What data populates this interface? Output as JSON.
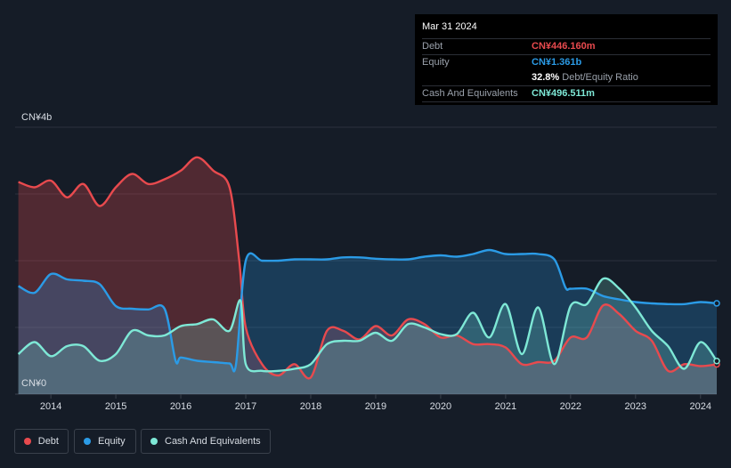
{
  "tooltip": {
    "date": "Mar 31 2024",
    "debt_label": "Debt",
    "debt_value": "CN¥446.160m",
    "equity_label": "Equity",
    "equity_value": "CN¥1.361b",
    "ratio_value": "32.8%",
    "ratio_label": "Debt/Equity Ratio",
    "cash_label": "Cash And Equivalents",
    "cash_value": "CN¥496.511m"
  },
  "legend": {
    "debt": "Debt",
    "equity": "Equity",
    "cash": "Cash And Equivalents"
  },
  "colors": {
    "debt": "#e84a4e",
    "equity": "#2b9be6",
    "cash": "#7ee8d6",
    "background": "#151c27"
  },
  "chart_data": {
    "type": "area",
    "y_unit": "CN¥ billion",
    "ylim": [
      0,
      4
    ],
    "y_tick_labels": [
      "CN¥4b",
      "CN¥0"
    ],
    "x_tick_labels": [
      "2014",
      "2015",
      "2016",
      "2017",
      "2018",
      "2019",
      "2020",
      "2021",
      "2022",
      "2023",
      "2024"
    ],
    "xlim": [
      2013.45,
      2024.25
    ],
    "grid": true,
    "legend_position": "bottom-left",
    "series": [
      {
        "name": "Debt",
        "x": [
          2013.5,
          2013.75,
          2014.0,
          2014.25,
          2014.5,
          2014.75,
          2015.0,
          2015.25,
          2015.5,
          2015.75,
          2016.0,
          2016.25,
          2016.5,
          2016.75,
          2016.9,
          2017.0,
          2017.25,
          2017.5,
          2017.75,
          2018.0,
          2018.25,
          2018.5,
          2018.75,
          2019.0,
          2019.25,
          2019.5,
          2019.75,
          2020.0,
          2020.25,
          2020.5,
          2020.75,
          2021.0,
          2021.25,
          2021.5,
          2021.75,
          2022.0,
          2022.25,
          2022.5,
          2022.75,
          2023.0,
          2023.25,
          2023.5,
          2023.75,
          2024.0,
          2024.25
        ],
        "values": [
          3.18,
          3.1,
          3.2,
          2.95,
          3.15,
          2.82,
          3.1,
          3.3,
          3.15,
          3.22,
          3.35,
          3.55,
          3.35,
          3.1,
          2.0,
          1.0,
          0.45,
          0.28,
          0.45,
          0.25,
          0.95,
          0.95,
          0.82,
          1.02,
          0.88,
          1.12,
          1.05,
          0.85,
          0.88,
          0.75,
          0.75,
          0.7,
          0.45,
          0.48,
          0.5,
          0.85,
          0.85,
          1.33,
          1.2,
          0.95,
          0.8,
          0.35,
          0.45,
          0.42,
          0.446
        ]
      },
      {
        "name": "Equity",
        "x": [
          2013.5,
          2013.75,
          2014.0,
          2014.25,
          2014.5,
          2014.75,
          2015.0,
          2015.25,
          2015.5,
          2015.75,
          2015.92,
          2016.0,
          2016.25,
          2016.5,
          2016.75,
          2016.85,
          2017.0,
          2017.25,
          2017.5,
          2017.75,
          2018.0,
          2018.25,
          2018.5,
          2018.75,
          2019.0,
          2019.25,
          2019.5,
          2019.75,
          2020.0,
          2020.25,
          2020.5,
          2020.75,
          2021.0,
          2021.25,
          2021.5,
          2021.75,
          2021.92,
          2022.0,
          2022.25,
          2022.5,
          2022.75,
          2023.0,
          2023.25,
          2023.5,
          2023.75,
          2024.0,
          2024.25
        ],
        "values": [
          1.62,
          1.52,
          1.8,
          1.72,
          1.7,
          1.65,
          1.32,
          1.28,
          1.27,
          1.28,
          0.5,
          0.55,
          0.5,
          0.48,
          0.46,
          0.45,
          2.0,
          2.0,
          2.0,
          2.02,
          2.02,
          2.02,
          2.05,
          2.05,
          2.03,
          2.02,
          2.02,
          2.06,
          2.08,
          2.06,
          2.1,
          2.16,
          2.1,
          2.1,
          2.1,
          2.02,
          1.6,
          1.58,
          1.58,
          1.47,
          1.42,
          1.38,
          1.36,
          1.35,
          1.35,
          1.38,
          1.361
        ]
      },
      {
        "name": "Cash And Equivalents",
        "x": [
          2013.5,
          2013.75,
          2014.0,
          2014.25,
          2014.5,
          2014.75,
          2015.0,
          2015.25,
          2015.5,
          2015.75,
          2016.0,
          2016.25,
          2016.5,
          2016.75,
          2016.92,
          2017.0,
          2017.25,
          2017.5,
          2017.75,
          2018.0,
          2018.25,
          2018.5,
          2018.75,
          2019.0,
          2019.25,
          2019.5,
          2019.75,
          2020.0,
          2020.25,
          2020.5,
          2020.75,
          2021.0,
          2021.25,
          2021.5,
          2021.75,
          2022.0,
          2022.25,
          2022.5,
          2022.75,
          2023.0,
          2023.25,
          2023.5,
          2023.75,
          2024.0,
          2024.25
        ],
        "values": [
          0.6,
          0.78,
          0.57,
          0.72,
          0.72,
          0.5,
          0.6,
          0.95,
          0.88,
          0.88,
          1.02,
          1.05,
          1.12,
          0.95,
          1.4,
          0.45,
          0.35,
          0.35,
          0.38,
          0.45,
          0.75,
          0.8,
          0.8,
          0.92,
          0.8,
          1.05,
          1.0,
          0.9,
          0.9,
          1.22,
          0.85,
          1.35,
          0.6,
          1.3,
          0.45,
          1.32,
          1.35,
          1.73,
          1.58,
          1.3,
          0.95,
          0.72,
          0.38,
          0.78,
          0.497
        ]
      }
    ]
  }
}
